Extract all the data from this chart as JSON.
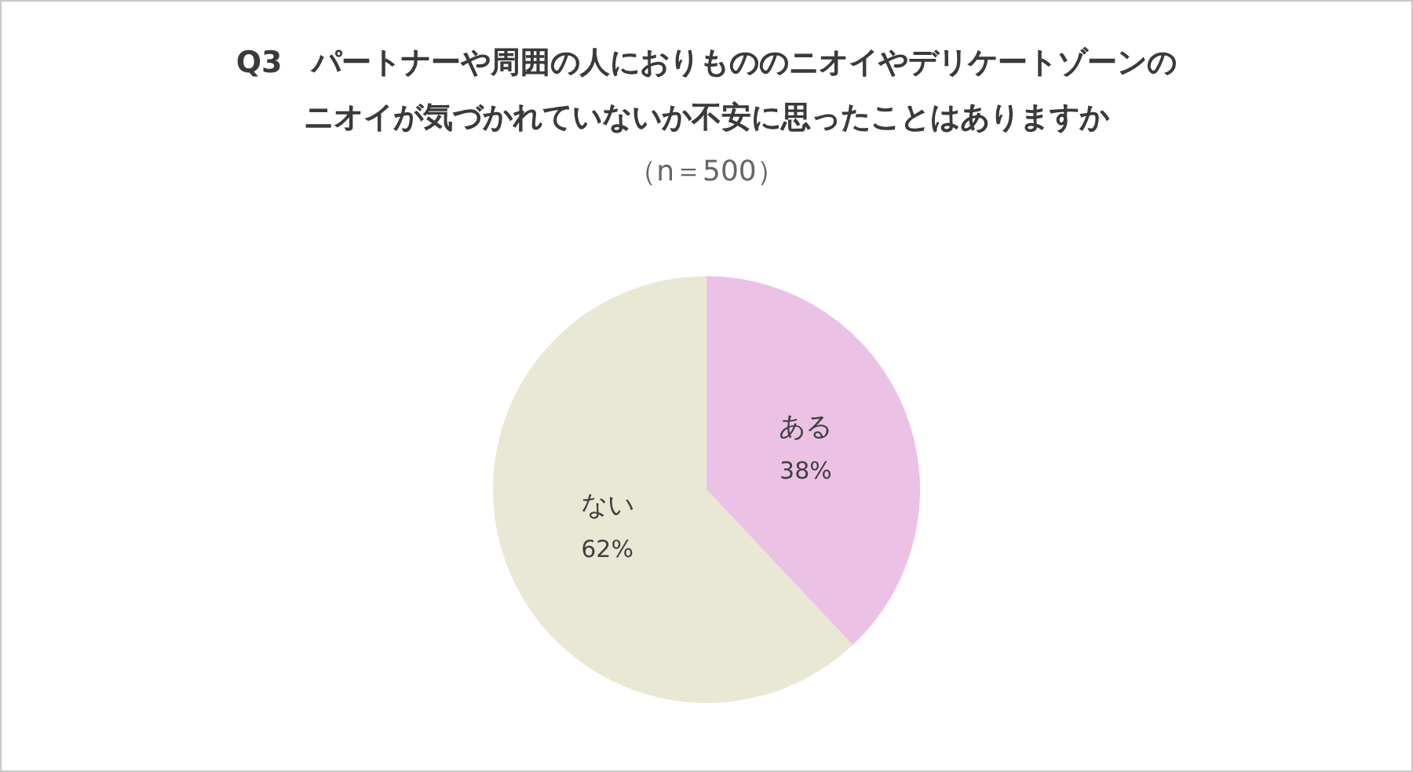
{
  "chart_data": {
    "type": "pie",
    "title": "Q3　パートナーや周囲の人におりもののニオイやデリケートゾーンのニオイが気づかれていないか不安に思ったことはありますか",
    "subtitle": "（n＝500）",
    "categories": [
      "ある",
      "ない"
    ],
    "values": [
      38,
      62
    ],
    "colors": [
      "#ebc2e5",
      "#e8e8d5"
    ],
    "value_labels": [
      "38%",
      "62%"
    ],
    "legend": false
  }
}
